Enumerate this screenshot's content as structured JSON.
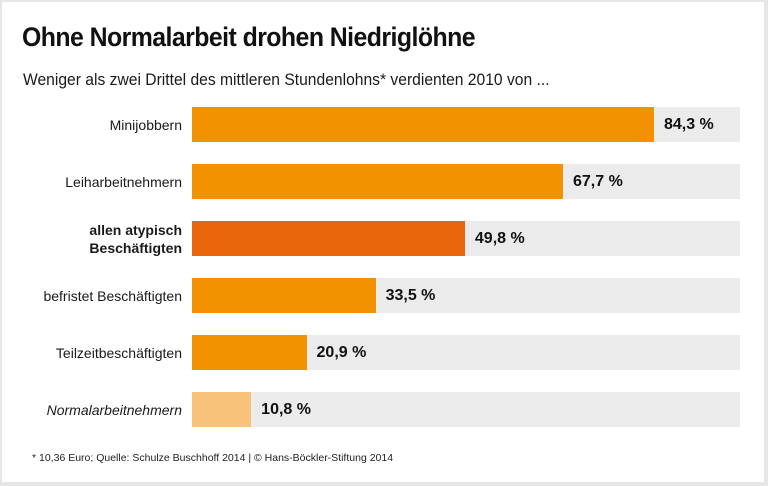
{
  "chart_data": {
    "type": "bar",
    "orientation": "horizontal",
    "title": "Ohne Normalarbeit drohen Niedriglöhne",
    "subtitle": "Weniger als zwei Drittel des mittleren Stundenlohns* verdienten 2010 von ...",
    "xlim": [
      0,
      100
    ],
    "unit": "%",
    "grid": false,
    "legend": "none",
    "categories": [
      "Minijobbern",
      "Leiharbeitnehmern",
      "allen atypisch Beschäftigten",
      "befristet Beschäftigten",
      "Teilzeitbeschäftigten",
      "Normalarbeitnehmern"
    ],
    "category_lines": [
      [
        "Minijobbern"
      ],
      [
        "Leiharbeitnehmern"
      ],
      [
        "allen atypisch",
        "Beschäftigten"
      ],
      [
        "befristet Beschäftigten"
      ],
      [
        "Teilzeitbeschäftigten"
      ],
      [
        "Normalarbeitnehmern"
      ]
    ],
    "category_styles": [
      "normal",
      "normal",
      "bold",
      "normal",
      "normal",
      "italic"
    ],
    "values": [
      84.3,
      67.7,
      49.8,
      33.5,
      20.9,
      10.8
    ],
    "value_labels": [
      "84,3 %",
      "67,7 %",
      "49,8 %",
      "33,5 %",
      "20,9 %",
      "10,8 %"
    ],
    "bar_colors": [
      "#f39200",
      "#f39200",
      "#e8650a",
      "#f39200",
      "#f39200",
      "#f9c27b"
    ],
    "track_color": "#ebebeb",
    "footnote": "* 10,36 Euro; Quelle: Schulze Buschhoff 2014 | © Hans-Böckler-Stiftung 2014"
  }
}
